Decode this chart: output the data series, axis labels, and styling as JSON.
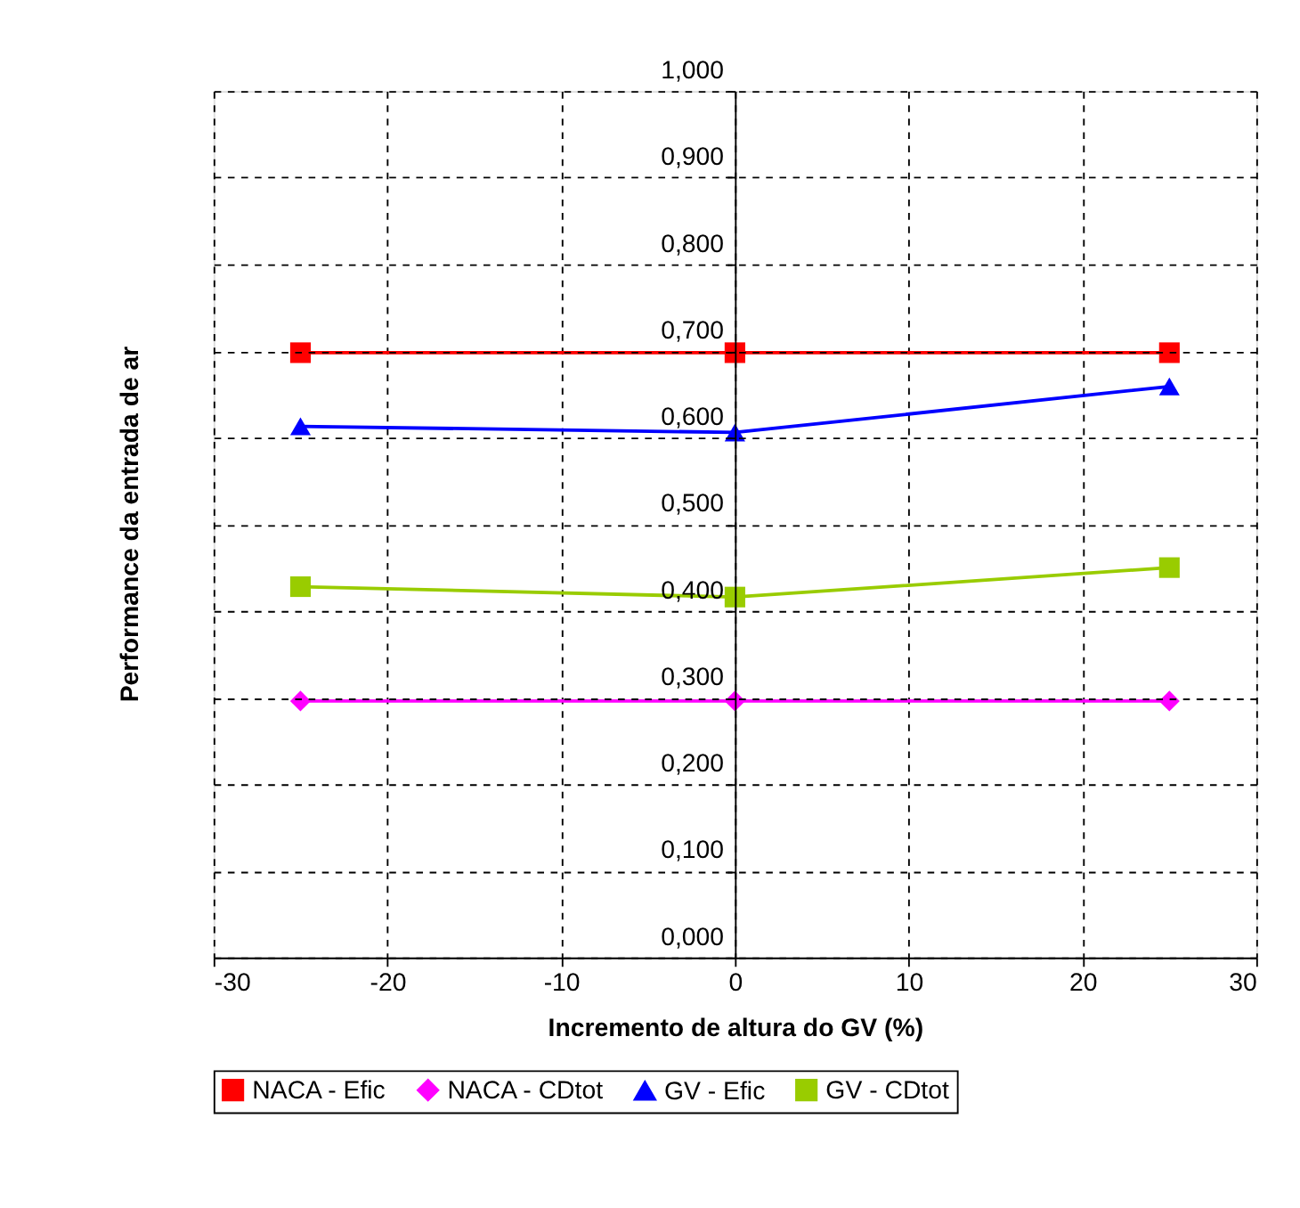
{
  "chart_data": {
    "type": "line",
    "xlabel": "Incremento de altura do GV (%)",
    "ylabel": "Performance da entrada de ar",
    "x": [
      -25,
      0,
      25
    ],
    "series": [
      {
        "name": "NACA - Efic",
        "color": "#ff0000",
        "marker": "square",
        "values": [
          0.698,
          0.698,
          0.698
        ]
      },
      {
        "name": "NACA - CDtot",
        "color": "#ff00ff",
        "marker": "diamond",
        "values": [
          0.296,
          0.296,
          0.296
        ]
      },
      {
        "name": "GV - Efic",
        "color": "#0000ff",
        "marker": "triangle",
        "values": [
          0.613,
          0.606,
          0.659
        ]
      },
      {
        "name": "GV - CDtot",
        "color": "#99cc00",
        "marker": "square",
        "values": [
          0.428,
          0.416,
          0.45
        ]
      }
    ],
    "xlim": [
      -30,
      30
    ],
    "xticks": [
      -30,
      -20,
      -10,
      0,
      10,
      20,
      30
    ],
    "ylim": [
      0,
      1
    ],
    "yticks": [
      {
        "value": 0,
        "label": "0,000"
      },
      {
        "value": 0.1,
        "label": "0,100"
      },
      {
        "value": 0.2,
        "label": "0,200"
      },
      {
        "value": 0.3,
        "label": "0,300"
      },
      {
        "value": 0.4,
        "label": "0,400"
      },
      {
        "value": 0.5,
        "label": "0,500"
      },
      {
        "value": 0.6,
        "label": "0,600"
      },
      {
        "value": 0.7,
        "label": "0,700"
      },
      {
        "value": 0.8,
        "label": "0,800"
      },
      {
        "value": 0.9,
        "label": "0,900"
      },
      {
        "value": 1.0,
        "label": "1,000"
      }
    ],
    "grid": true,
    "legend": "bottom",
    "line_style": "solid"
  }
}
